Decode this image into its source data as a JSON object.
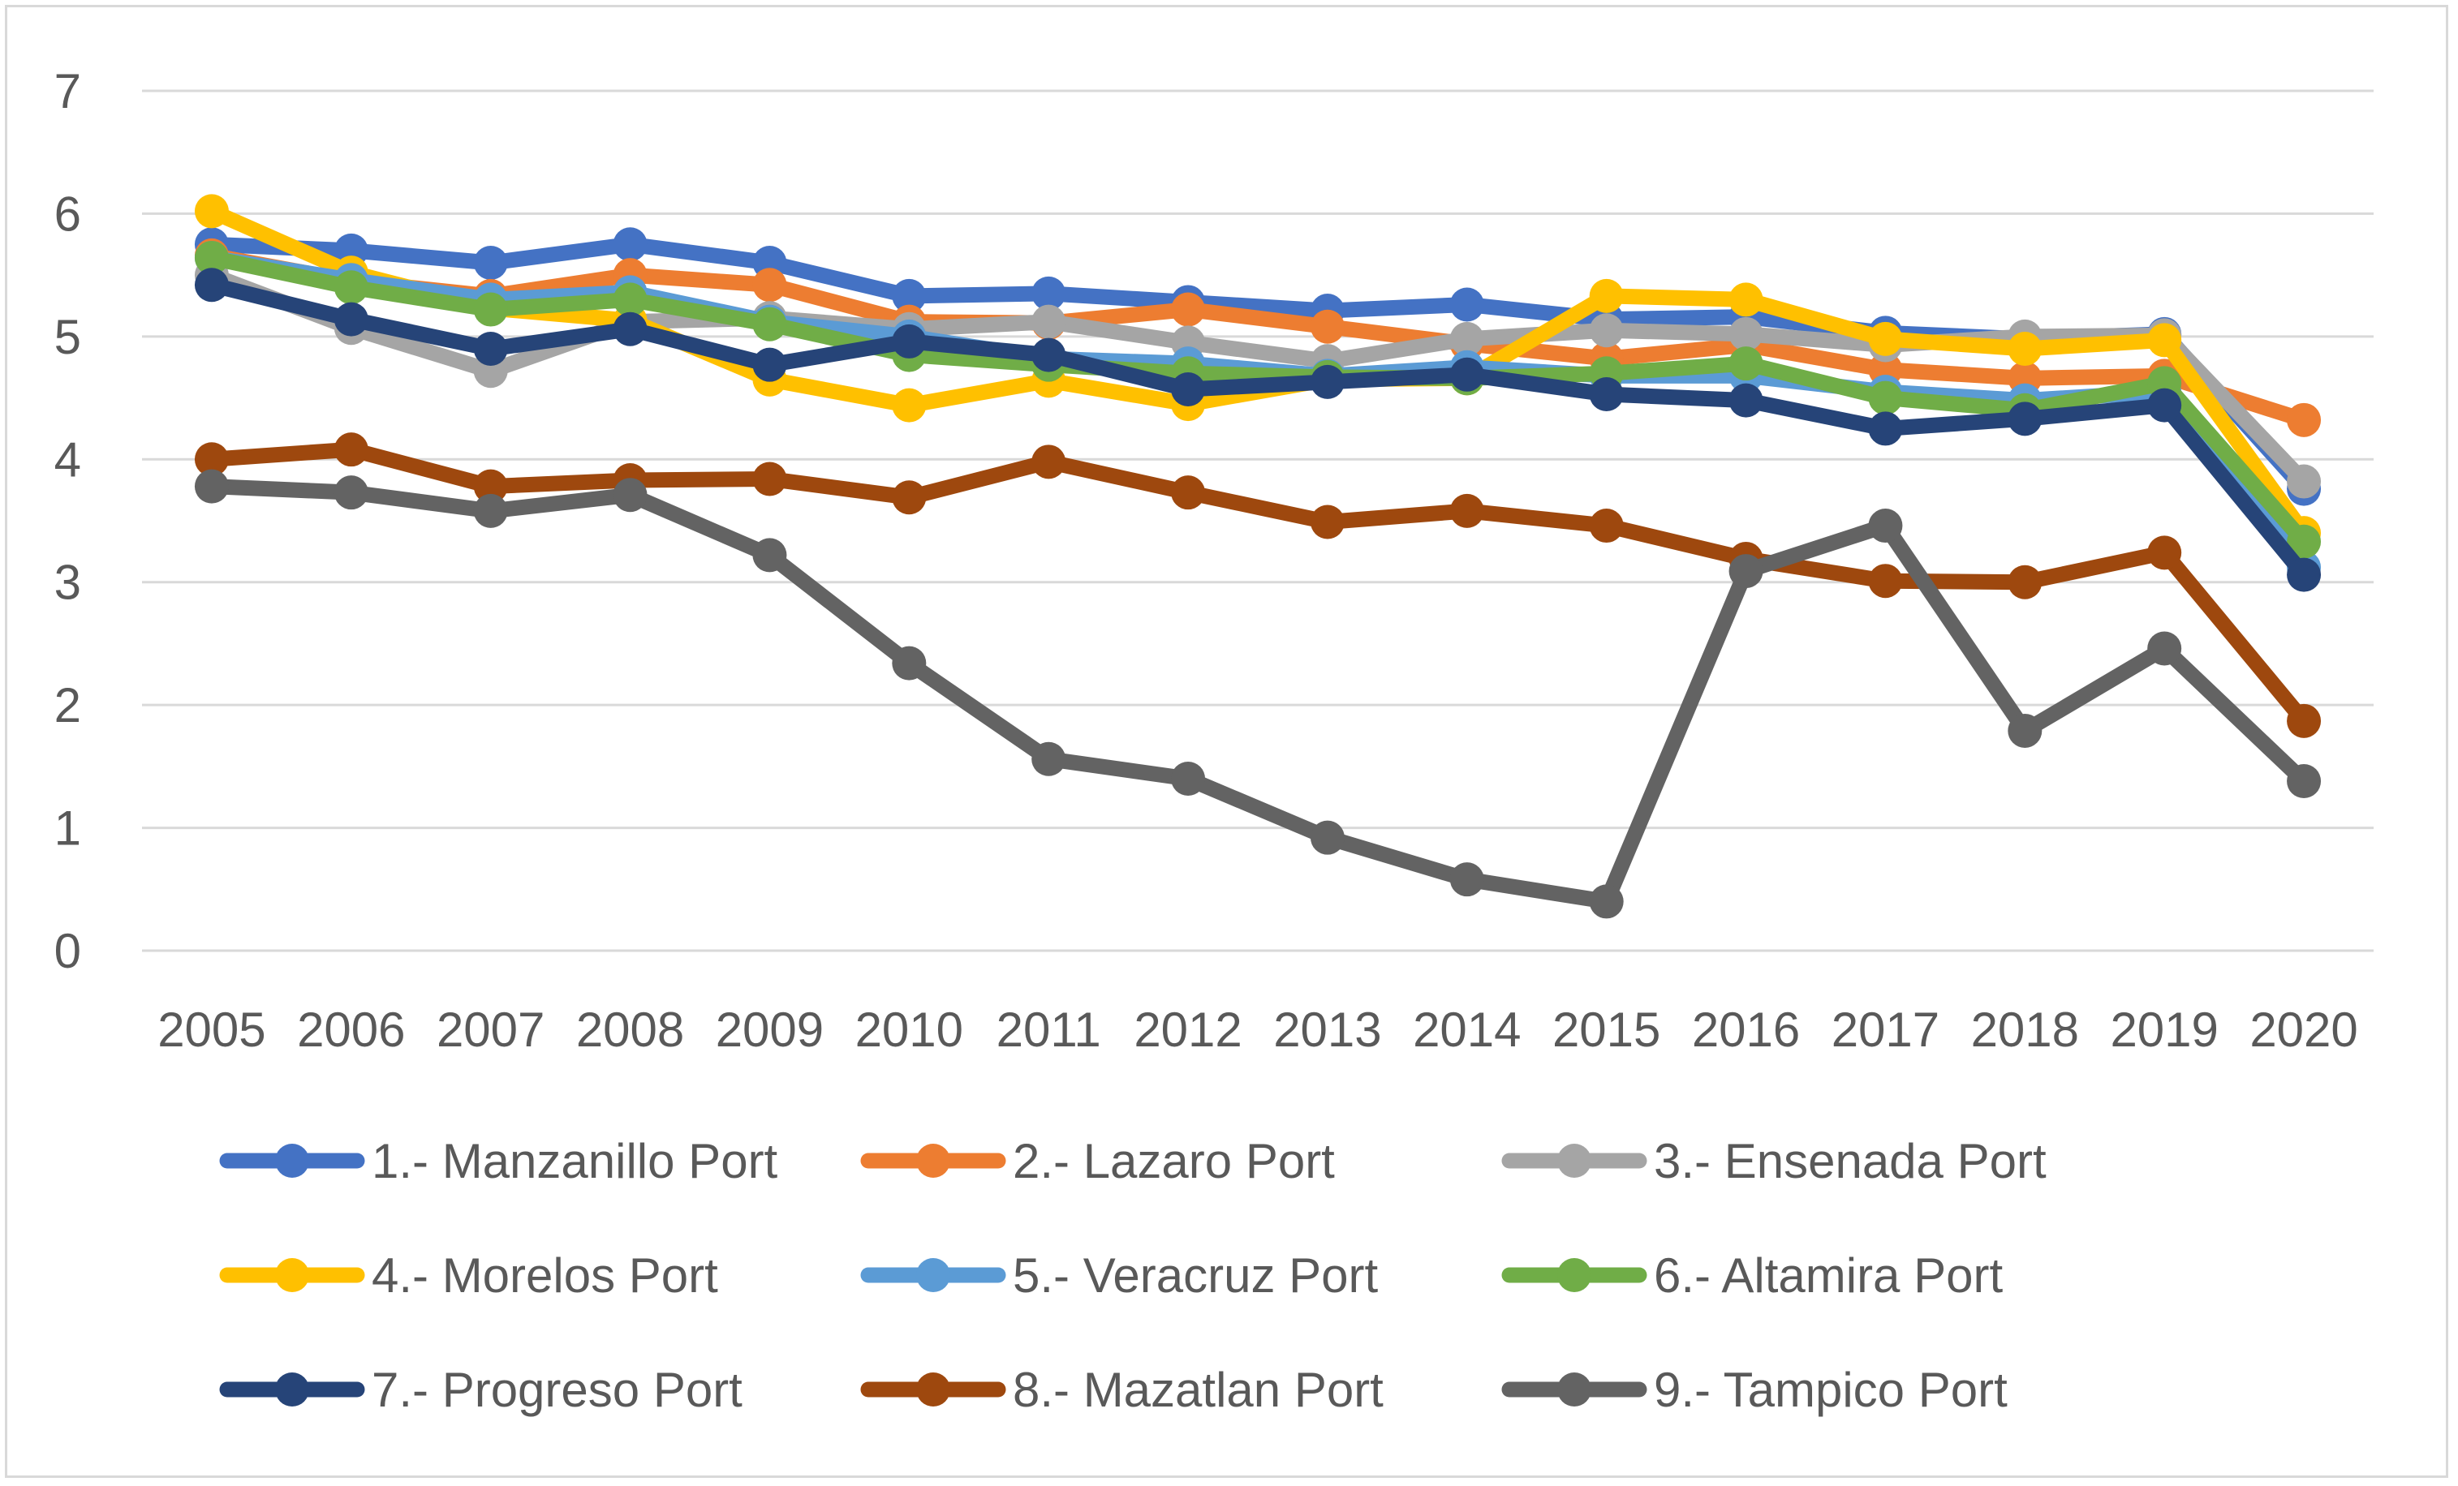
{
  "chart_data": {
    "type": "line",
    "title": "",
    "xlabel": "",
    "ylabel": "",
    "ylim": [
      0,
      7
    ],
    "yticks": [
      "0",
      "1",
      "2",
      "3",
      "4",
      "5",
      "6",
      "7"
    ],
    "grid": true,
    "legend_position": "bottom",
    "categories": [
      "2005",
      "2006",
      "2007",
      "2008",
      "2009",
      "2010",
      "2011",
      "2012",
      "2013",
      "2014",
      "2015",
      "2016",
      "2017",
      "2018",
      "2019",
      "2020"
    ],
    "series": [
      {
        "name": "1.- Manzanillo Port",
        "color": "#4472c4",
        "values": [
          5.75,
          5.7,
          5.6,
          5.75,
          5.6,
          5.33,
          5.35,
          5.28,
          5.21,
          5.26,
          5.14,
          5.16,
          5.03,
          4.98,
          5.02,
          3.76
        ]
      },
      {
        "name": "2.- Lazaro Port",
        "color": "#ed7d31",
        "values": [
          5.66,
          5.45,
          5.33,
          5.5,
          5.42,
          5.12,
          5.11,
          5.22,
          5.08,
          4.94,
          4.82,
          4.93,
          4.73,
          4.66,
          4.68,
          4.32
        ]
      },
      {
        "name": "3.- Ensenada Port",
        "color": "#a5a5a5",
        "values": [
          5.5,
          5.07,
          4.72,
          5.12,
          5.15,
          5.06,
          5.12,
          4.95,
          4.8,
          4.98,
          5.05,
          5.02,
          4.93,
          5.0,
          5.01,
          3.82
        ]
      },
      {
        "name": "4.- Morelos Port",
        "color": "#ffc000",
        "values": [
          6.02,
          5.52,
          5.23,
          5.13,
          4.65,
          4.44,
          4.64,
          4.45,
          4.65,
          4.66,
          5.33,
          5.3,
          4.98,
          4.9,
          4.97,
          3.4
        ]
      },
      {
        "name": "5.- Veracruz Port",
        "color": "#5b9bd5",
        "values": [
          5.64,
          5.46,
          5.3,
          5.36,
          5.12,
          5.0,
          4.82,
          4.78,
          4.68,
          4.75,
          4.68,
          4.68,
          4.55,
          4.48,
          4.55,
          3.12
        ]
      },
      {
        "name": "6.- Altamira Port",
        "color": "#70ad47",
        "values": [
          5.64,
          5.4,
          5.22,
          5.3,
          5.1,
          4.85,
          4.77,
          4.7,
          4.67,
          4.66,
          4.7,
          4.78,
          4.5,
          4.4,
          4.62,
          3.33
        ]
      },
      {
        "name": "7.- Progreso Port",
        "color": "#264478",
        "values": [
          5.42,
          5.14,
          4.9,
          5.06,
          4.77,
          4.96,
          4.85,
          4.57,
          4.63,
          4.69,
          4.53,
          4.48,
          4.25,
          4.33,
          4.44,
          3.06
        ]
      },
      {
        "name": "8.- Mazatlan Port",
        "color": "#9e480e",
        "values": [
          4.0,
          4.08,
          3.78,
          3.83,
          3.84,
          3.69,
          3.98,
          3.73,
          3.49,
          3.58,
          3.46,
          3.19,
          3.01,
          3.0,
          3.24,
          1.87
        ]
      },
      {
        "name": "9.- Tampico Port",
        "color": "#636363",
        "values": [
          3.78,
          3.73,
          3.58,
          3.71,
          3.22,
          2.34,
          1.56,
          1.4,
          0.92,
          0.58,
          0.4,
          3.09,
          3.46,
          1.79,
          2.46,
          1.38
        ]
      }
    ]
  }
}
